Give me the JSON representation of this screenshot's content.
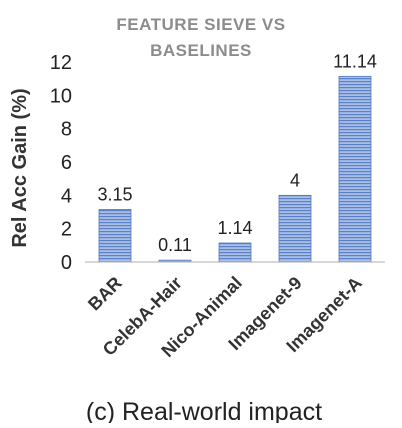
{
  "chart_data": {
    "type": "bar",
    "title_lines": [
      "FEATURE SIEVE VS",
      "BASELINES"
    ],
    "ylabel": "Rel Acc Gain (%)",
    "xlabel": "",
    "caption": "(c) Real-world impact",
    "categories": [
      "BAR",
      "CelebA-Hair",
      "Nico-Animal",
      "Imagenet-9",
      "Imagenet-A"
    ],
    "values": [
      3.15,
      0.11,
      1.14,
      4,
      11.14
    ],
    "data_labels": [
      "3.15",
      "0.11",
      "1.14",
      "4",
      "11.14"
    ],
    "ylim": [
      0,
      12
    ],
    "yticks": [
      0,
      2,
      4,
      6,
      8,
      10,
      12
    ],
    "grid": false,
    "legend": "none",
    "colors": {
      "bar_fill": "#a9bfe6",
      "bar_stripe": "#5b82c9",
      "bar_edge": "#4f76c0",
      "axis": "#bfbfbf",
      "title": "#8c8c8c",
      "text": "#222222",
      "label": "#333333"
    }
  }
}
